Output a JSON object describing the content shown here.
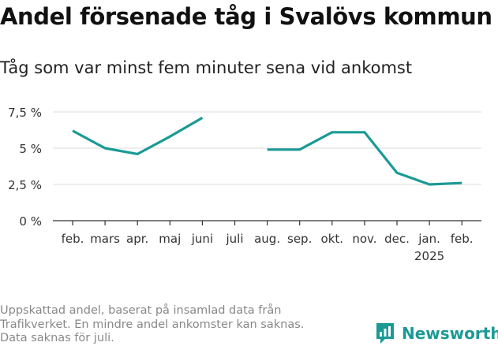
{
  "chart_data": {
    "type": "line",
    "title": "Andel försenade tåg i Svalövs kommun",
    "subtitle": "Tåg som var minst fem minuter sena vid ankomst",
    "categories": [
      "feb.",
      "mars",
      "apr.",
      "maj",
      "juni",
      "juli",
      "aug.",
      "sep.",
      "okt.",
      "nov.",
      "dec.",
      "jan.",
      "feb."
    ],
    "year_label": {
      "category_index": 11,
      "text": "2025"
    },
    "series": [
      {
        "values": [
          6.2,
          5.0,
          4.6,
          5.8,
          7.1,
          null,
          4.9,
          4.9,
          6.1,
          6.1,
          3.3,
          2.5,
          2.6
        ]
      }
    ],
    "yticks": [
      {
        "value": 0,
        "label": "0 %"
      },
      {
        "value": 2.5,
        "label": "2,5 %"
      },
      {
        "value": 5,
        "label": "5 %"
      },
      {
        "value": 7.5,
        "label": "7,5 %"
      }
    ],
    "ylim": [
      0,
      7.5
    ],
    "grid": true,
    "line_color": "#1b9a95",
    "grid_color": "#dddddd",
    "axis_color": "#333333"
  },
  "footnote": [
    "Uppskattad andel, baserat på insamlad data från",
    "Trafikverket. En mindre andel ankomster kan saknas.",
    "Data saknas för juli."
  ],
  "brand": {
    "name": "Newsworthy",
    "color": "#1b9a95",
    "icon": "newsworthy-logo-icon"
  }
}
